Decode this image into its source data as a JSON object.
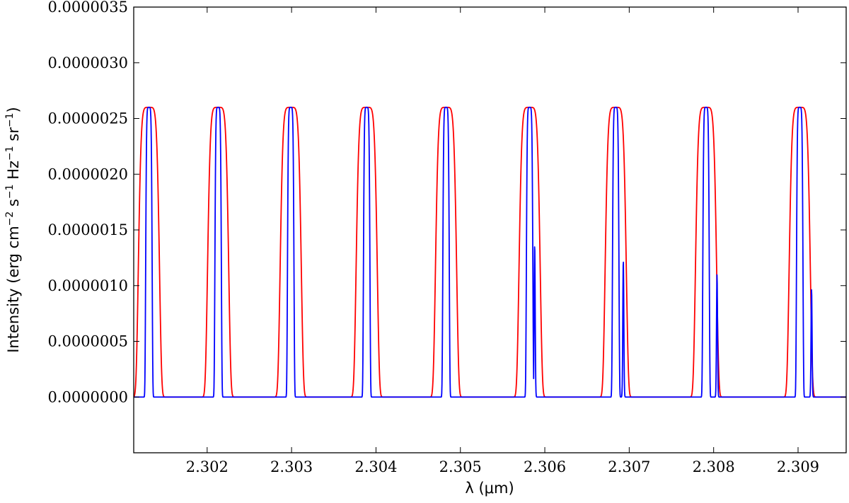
{
  "chart_data": {
    "type": "line",
    "title": "",
    "xlabel": "λ (μm)",
    "ylabel": {
      "text": "Intensity (erg cm",
      "sup1": "−2",
      "mid1": " s",
      "sup2": "−1",
      "mid2": " Hz",
      "sup3": "−1",
      "mid3": " sr",
      "sup4": "−1",
      "end": ")"
    },
    "xlim": [
      2.30113,
      2.30957
    ],
    "ylim": [
      -5e-07,
      3.5e-06
    ],
    "x_ticks": [
      "2.302",
      "2.303",
      "2.304",
      "2.305",
      "2.306",
      "2.307",
      "2.308",
      "2.309"
    ],
    "y_ticks": [
      "0.0000000",
      "0.0000005",
      "0.0000010",
      "0.0000015",
      "0.0000020",
      "0.0000025",
      "0.0000030",
      "0.0000035"
    ],
    "grid": false,
    "legend": "none",
    "peak_value": 2.6e-06,
    "channels": [
      {
        "center": 2.30131,
        "blue_width": 4e-05,
        "red_width": 0.00013
      },
      {
        "center": 2.30213,
        "blue_width": 4e-05,
        "red_width": 0.00013
      },
      {
        "center": 2.30299,
        "blue_width": 4e-05,
        "red_width": 0.00013
      },
      {
        "center": 2.30389,
        "blue_width": 4e-05,
        "red_width": 0.00013
      },
      {
        "center": 2.30483,
        "blue_width": 4e-05,
        "red_width": 0.00013
      },
      {
        "center": 2.30582,
        "blue_width": 4e-05,
        "red_width": 0.00013
      },
      {
        "center": 2.30684,
        "blue_width": 4e-05,
        "red_width": 0.00013
      },
      {
        "center": 2.30791,
        "blue_width": 4e-05,
        "red_width": 0.00013
      },
      {
        "center": 2.30902,
        "blue_width": 4e-05,
        "red_width": 0.00013
      }
    ],
    "blue_spikes": [
      {
        "x": 2.30588,
        "height": 1.37e-06
      },
      {
        "x": 2.30693,
        "height": 1.23e-06
      },
      {
        "x": 2.30804,
        "height": 1.1e-06
      },
      {
        "x": 2.30916,
        "height": 9.7e-07
      }
    ],
    "series": [
      {
        "color": "#ff0000"
      },
      {
        "color": "#0000ff"
      }
    ]
  }
}
